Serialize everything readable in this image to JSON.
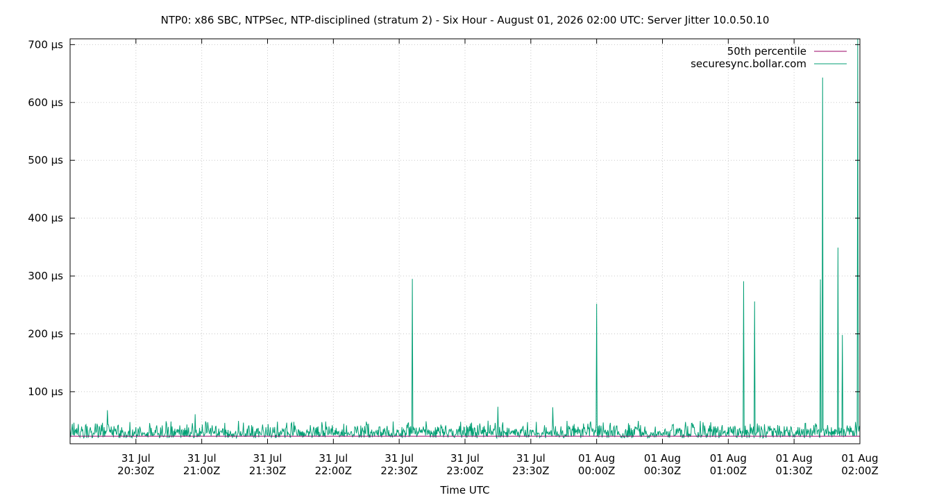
{
  "chart_data": {
    "type": "line",
    "title": "NTP0: x86 SBC, NTPSec, NTP-disciplined (stratum 2) - Six Hour - August 01, 2026 02:00 UTC: Server Jitter 10.0.50.10",
    "xlabel": "Time UTC",
    "ylabel": "",
    "x_start": "2026-07-31T20:00Z",
    "x_end": "2026-08-01T02:00Z",
    "ylim": [
      10,
      710
    ],
    "grid": true,
    "legend_position": "top-right",
    "y_ticks": [
      {
        "value": 100,
        "label": "100 µs"
      },
      {
        "value": 200,
        "label": "200 µs"
      },
      {
        "value": 300,
        "label": "300 µs"
      },
      {
        "value": 400,
        "label": "400 µs"
      },
      {
        "value": 500,
        "label": "500 µs"
      },
      {
        "value": 600,
        "label": "600 µs"
      },
      {
        "value": 700,
        "label": "700 µs"
      }
    ],
    "x_ticks": [
      {
        "time": "2026-07-31T20:30Z",
        "line1": "31 Jul",
        "line2": "20:30Z"
      },
      {
        "time": "2026-07-31T21:00Z",
        "line1": "31 Jul",
        "line2": "21:00Z"
      },
      {
        "time": "2026-07-31T21:30Z",
        "line1": "31 Jul",
        "line2": "21:30Z"
      },
      {
        "time": "2026-07-31T22:00Z",
        "line1": "31 Jul",
        "line2": "22:00Z"
      },
      {
        "time": "2026-07-31T22:30Z",
        "line1": "31 Jul",
        "line2": "22:30Z"
      },
      {
        "time": "2026-07-31T23:00Z",
        "line1": "31 Jul",
        "line2": "23:00Z"
      },
      {
        "time": "2026-07-31T23:30Z",
        "line1": "31 Jul",
        "line2": "23:30Z"
      },
      {
        "time": "2026-08-01T00:00Z",
        "line1": "01 Aug",
        "line2": "00:00Z"
      },
      {
        "time": "2026-08-01T00:30Z",
        "line1": "01 Aug",
        "line2": "00:30Z"
      },
      {
        "time": "2026-08-01T01:00Z",
        "line1": "01 Aug",
        "line2": "01:00Z"
      },
      {
        "time": "2026-08-01T01:30Z",
        "line1": "01 Aug",
        "line2": "01:30Z"
      },
      {
        "time": "2026-08-01T02:00Z",
        "line1": "01 Aug",
        "line2": "02:00Z"
      }
    ],
    "series": [
      {
        "name": "50th percentile",
        "color": "#990066",
        "baseline_value": 23
      },
      {
        "name": "securesync.bollar.com",
        "color": "#009e73",
        "baseline_value": 25,
        "noise_range": [
          12,
          50
        ],
        "spikes": [
          {
            "time": "2026-07-31T20:17Z",
            "value": 68
          },
          {
            "time": "2026-07-31T20:57Z",
            "value": 61
          },
          {
            "time": "2026-07-31T22:36Z",
            "value": 295
          },
          {
            "time": "2026-07-31T23:15Z",
            "value": 74
          },
          {
            "time": "2026-07-31T23:40Z",
            "value": 73
          },
          {
            "time": "2026-08-01T00:00Z",
            "value": 252
          },
          {
            "time": "2026-08-01T01:07Z",
            "value": 291
          },
          {
            "time": "2026-08-01T01:12Z",
            "value": 256
          },
          {
            "time": "2026-08-01T01:42Z",
            "value": 294
          },
          {
            "time": "2026-08-01T01:43Z",
            "value": 643
          },
          {
            "time": "2026-08-01T01:50Z",
            "value": 349
          },
          {
            "time": "2026-08-01T01:52Z",
            "value": 198
          },
          {
            "time": "2026-08-01T01:59Z",
            "value": 710
          }
        ]
      }
    ]
  }
}
